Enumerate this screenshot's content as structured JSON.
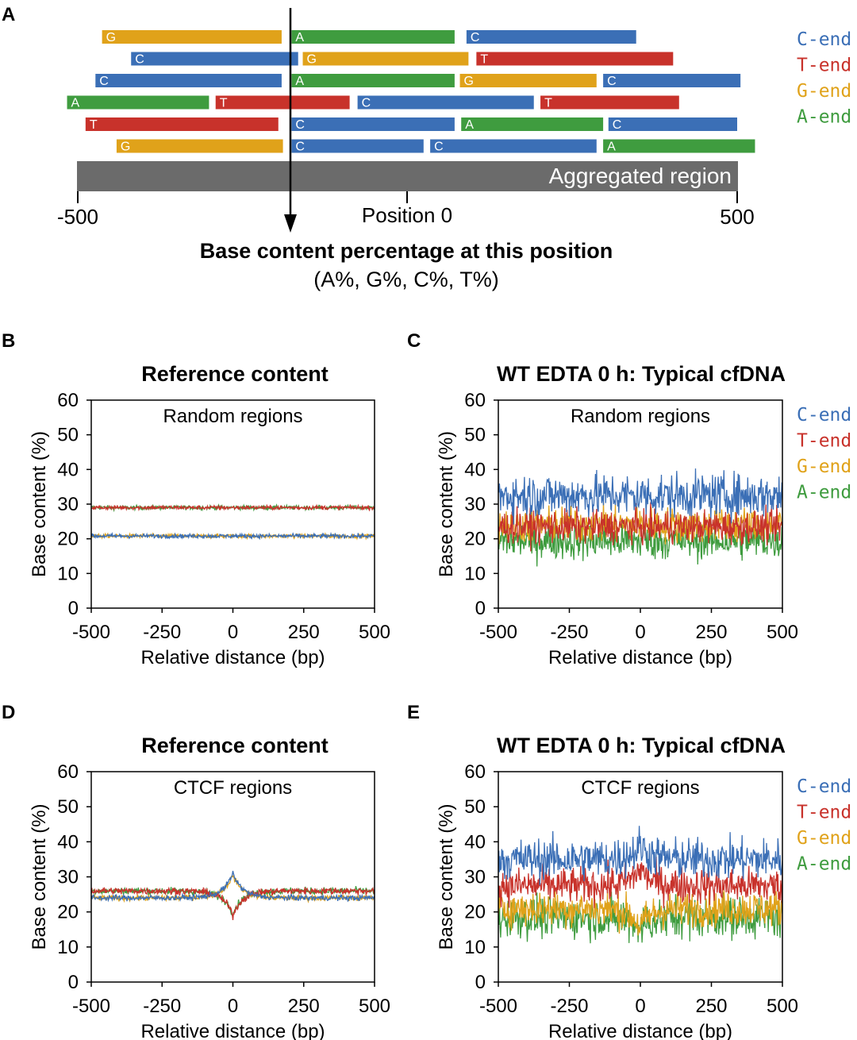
{
  "colors": {
    "C": "#3b6fb6",
    "T": "#c8322b",
    "G": "#e0a21a",
    "A": "#3f9c3f",
    "aggregated": "#6b6b6b",
    "axis": "#000000"
  },
  "legend": [
    {
      "base": "C",
      "label": "C-end"
    },
    {
      "base": "T",
      "label": "T-end"
    },
    {
      "base": "G",
      "label": "G-end"
    },
    {
      "base": "A",
      "label": "A-end"
    }
  ],
  "panel_a": {
    "letter": "A",
    "aggregated_label": "Aggregated region",
    "scale_labels": [
      "-500",
      "Position 0",
      "500"
    ],
    "caption_bold": "Base content percentage at this position",
    "caption_normal": "(A%, G%, C%, T%)",
    "fragments": [
      [
        {
          "base": "G",
          "start": -462,
          "end": -190
        },
        {
          "base": "A",
          "start": -175,
          "end": 72
        },
        {
          "base": "C",
          "start": 90,
          "end": 347
        }
      ],
      [
        {
          "base": "C",
          "start": -418,
          "end": -165
        },
        {
          "base": "G",
          "start": -158,
          "end": 93
        },
        {
          "base": "T",
          "start": 105,
          "end": 403
        }
      ],
      [
        {
          "base": "C",
          "start": -472,
          "end": -190
        },
        {
          "base": "A",
          "start": -175,
          "end": 72
        },
        {
          "base": "G",
          "start": 80,
          "end": 287
        },
        {
          "base": "C",
          "start": 297,
          "end": 505
        }
      ],
      [
        {
          "base": "A",
          "start": -515,
          "end": -300
        },
        {
          "base": "T",
          "start": -290,
          "end": -87
        },
        {
          "base": "C",
          "start": -75,
          "end": 192
        },
        {
          "base": "T",
          "start": 202,
          "end": 412
        }
      ],
      [
        {
          "base": "T",
          "start": -487,
          "end": -195
        },
        {
          "base": "C",
          "start": -175,
          "end": 72
        },
        {
          "base": "A",
          "start": 82,
          "end": 297
        },
        {
          "base": "C",
          "start": 305,
          "end": 500
        }
      ],
      [
        {
          "base": "G",
          "start": -440,
          "end": -188
        },
        {
          "base": "C",
          "start": -175,
          "end": 25
        },
        {
          "base": "C",
          "start": 35,
          "end": 287
        },
        {
          "base": "A",
          "start": 297,
          "end": 527
        }
      ]
    ]
  },
  "panels": [
    {
      "letter": "B",
      "title": "Reference content",
      "inner_label": "Random regions"
    },
    {
      "letter": "C",
      "title": "WT EDTA 0 h: Typical cfDNA",
      "inner_label": "Random regions"
    },
    {
      "letter": "D",
      "title": "Reference content",
      "inner_label": "CTCF regions"
    },
    {
      "letter": "E",
      "title": "WT EDTA 0 h: Typical cfDNA",
      "inner_label": "CTCF regions"
    }
  ],
  "axes": {
    "ylabel": "Base content (%)",
    "xlabel": "Relative distance (bp)",
    "xticks": [
      "-500",
      "-250",
      "0",
      "250",
      "500"
    ],
    "yticks": [
      "0",
      "10",
      "20",
      "30",
      "40",
      "50",
      "60"
    ]
  },
  "chart_data": [
    {
      "type": "line",
      "panel": "B",
      "title": "Reference content",
      "annotation": "Random regions",
      "xlabel": "Relative distance (bp)",
      "ylabel": "Base content (%)",
      "xlim": [
        -500,
        500
      ],
      "ylim": [
        0,
        60
      ],
      "x": [
        -500,
        500
      ],
      "series": [
        {
          "name": "C-end",
          "values": [
            20.8,
            20.8
          ],
          "noise": 0.3,
          "dip": 0
        },
        {
          "name": "T-end",
          "values": [
            29.0,
            29.0
          ],
          "noise": 0.3,
          "dip": 0
        },
        {
          "name": "G-end",
          "values": [
            20.8,
            20.8
          ],
          "noise": 0.3,
          "dip": 0
        },
        {
          "name": "A-end",
          "values": [
            29.0,
            29.0
          ],
          "noise": 0.3,
          "dip": 0
        }
      ]
    },
    {
      "type": "line",
      "panel": "C",
      "title": "WT EDTA 0 h: Typical cfDNA",
      "annotation": "Random regions",
      "xlabel": "Relative distance (bp)",
      "ylabel": "Base content (%)",
      "xlim": [
        -500,
        500
      ],
      "ylim": [
        0,
        60
      ],
      "x": [
        -500,
        500
      ],
      "series": [
        {
          "name": "C-end",
          "values": [
            32.5,
            32.5
          ],
          "noise": 3.2,
          "dip": 0
        },
        {
          "name": "T-end",
          "values": [
            23.5,
            23.5
          ],
          "noise": 2.4,
          "dip": 0
        },
        {
          "name": "G-end",
          "values": [
            24.0,
            24.0
          ],
          "noise": 2.6,
          "dip": 0
        },
        {
          "name": "A-end",
          "values": [
            19.5,
            19.5
          ],
          "noise": 2.8,
          "dip": 0
        }
      ]
    },
    {
      "type": "line",
      "panel": "D",
      "title": "Reference content",
      "annotation": "CTCF regions",
      "xlabel": "Relative distance (bp)",
      "ylabel": "Base content (%)",
      "xlim": [
        -500,
        500
      ],
      "ylim": [
        0,
        60
      ],
      "x": [
        -500,
        500
      ],
      "series": [
        {
          "name": "C-end",
          "values": [
            24.0,
            24.0
          ],
          "noise": 0.4,
          "dip": 7.0
        },
        {
          "name": "T-end",
          "values": [
            26.0,
            26.0
          ],
          "noise": 0.5,
          "dip": -7.0
        },
        {
          "name": "G-end",
          "values": [
            24.0,
            24.0
          ],
          "noise": 0.4,
          "dip": 6.5
        },
        {
          "name": "A-end",
          "values": [
            26.0,
            26.0
          ],
          "noise": 0.5,
          "dip": -6.5
        }
      ]
    },
    {
      "type": "line",
      "panel": "E",
      "title": "WT EDTA 0 h: Typical cfDNA",
      "annotation": "CTCF regions",
      "xlabel": "Relative distance (bp)",
      "ylabel": "Base content (%)",
      "xlim": [
        -500,
        500
      ],
      "ylim": [
        0,
        60
      ],
      "x": [
        -500,
        500
      ],
      "series": [
        {
          "name": "C-end",
          "values": [
            35.0,
            35.0
          ],
          "noise": 3.0,
          "dip": 4.0
        },
        {
          "name": "T-end",
          "values": [
            27.5,
            27.5
          ],
          "noise": 2.6,
          "dip": 5.0
        },
        {
          "name": "G-end",
          "values": [
            21.0,
            21.0
          ],
          "noise": 2.6,
          "dip": -5.5
        },
        {
          "name": "A-end",
          "values": [
            18.5,
            18.5
          ],
          "noise": 3.0,
          "dip": -3.0
        }
      ]
    }
  ]
}
